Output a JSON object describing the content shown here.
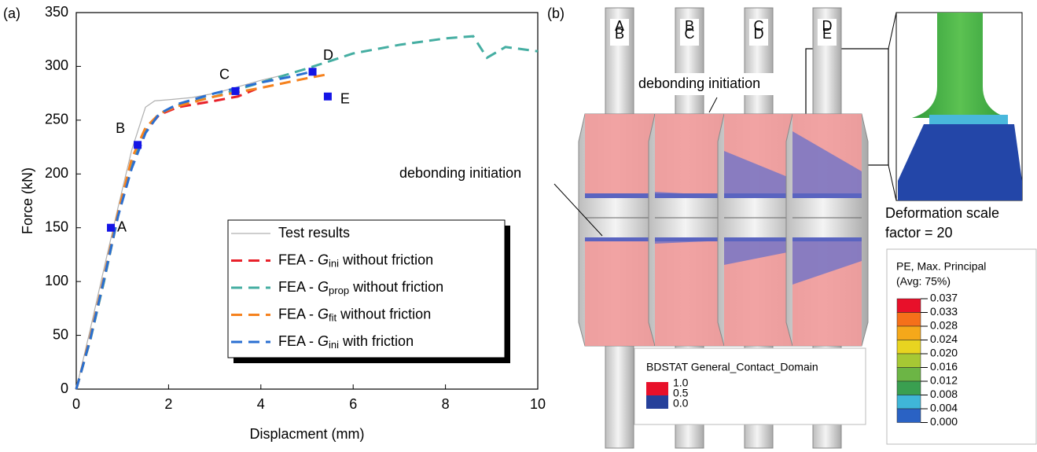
{
  "chart_data": {
    "type": "line",
    "panel_label": "(a)",
    "x_label": "Displacment (mm)",
    "y_label": "Force (kN)",
    "xlim": [
      0,
      10
    ],
    "ylim": [
      0,
      350
    ],
    "xticks": [
      0,
      2,
      4,
      6,
      8,
      10
    ],
    "yticks": [
      0,
      50,
      100,
      150,
      200,
      250,
      300,
      350
    ],
    "series": [
      {
        "name": "Test results",
        "color": "#b0b0b0",
        "dash": false,
        "x": [
          0,
          0.3,
          0.6,
          0.9,
          1.2,
          1.5,
          1.7,
          2.0,
          2.5,
          3.0,
          3.5,
          4.0,
          4.6
        ],
        "values": [
          0,
          55,
          112,
          168,
          222,
          262,
          268,
          269,
          271,
          275,
          281,
          287,
          293
        ]
      },
      {
        "name": "FEA - Gini without friction",
        "color": "#e8212a",
        "dash": true,
        "x": [
          0,
          0.3,
          0.6,
          0.9,
          1.2,
          1.5,
          1.8,
          2.2,
          2.6,
          3.0,
          3.5,
          3.9
        ],
        "values": [
          0,
          45,
          100,
          160,
          210,
          240,
          255,
          262,
          265,
          268,
          272,
          279
        ]
      },
      {
        "name": "FEA - Gprop without friction",
        "color": "#45aea2",
        "dash": true,
        "x": [
          0,
          0.3,
          0.6,
          0.9,
          1.2,
          1.5,
          1.8,
          2.2,
          3.0,
          4.0,
          5.0,
          6.0,
          7.0,
          8.0,
          8.6,
          8.9,
          9.3,
          10.0
        ],
        "values": [
          0,
          45,
          100,
          160,
          212,
          242,
          256,
          264,
          272,
          285,
          298,
          312,
          320,
          326,
          328,
          308,
          318,
          314
        ]
      },
      {
        "name": "FEA - Gfit without friction",
        "color": "#f5821f",
        "dash": true,
        "x": [
          0,
          0.3,
          0.6,
          0.9,
          1.2,
          1.5,
          1.8,
          2.2,
          3.0,
          4.0,
          5.0,
          5.5
        ],
        "values": [
          0,
          48,
          104,
          163,
          214,
          243,
          256,
          263,
          272,
          280,
          289,
          293
        ]
      },
      {
        "name": "FEA - Gini with friction",
        "color": "#2a6fd1",
        "dash": true,
        "x": [
          0,
          0.3,
          0.6,
          0.9,
          1.2,
          1.5,
          1.8,
          2.2,
          3.0,
          4.0,
          4.6,
          5.1
        ],
        "values": [
          0,
          46,
          102,
          160,
          205,
          238,
          256,
          265,
          275,
          285,
          290,
          295
        ]
      }
    ],
    "points": [
      {
        "label": "A",
        "x": 0.75,
        "y": 150
      },
      {
        "label": "B",
        "x": 1.33,
        "y": 227
      },
      {
        "label": "C",
        "x": 3.45,
        "y": 277
      },
      {
        "label": "D",
        "x": 5.12,
        "y": 295
      },
      {
        "label": "E",
        "x": 5.45,
        "y": 272
      }
    ],
    "point_color": "#1414e6"
  },
  "panel_b": {
    "panel_label": "(b)",
    "specimens": [
      [
        "A",
        "B"
      ],
      [
        "B",
        "C"
      ],
      [
        "C",
        "D"
      ],
      [
        "D",
        "E"
      ]
    ],
    "annotations": [
      "debonding initiation",
      "debonding initiation"
    ],
    "scale_note": [
      "Deformation scale",
      "factor = 20"
    ],
    "bdstat": {
      "title": "BDSTAT General_Contact_Domain",
      "labels": [
        "1.0",
        "0.5",
        "0.0"
      ]
    },
    "colorbar": {
      "title": [
        "PE, Max. Principal",
        "(Avg: 75%)"
      ],
      "labels": [
        "0.037",
        "0.033",
        "0.028",
        "0.024",
        "0.020",
        "0.016",
        "0.012",
        "0.008",
        "0.004",
        "0.000"
      ]
    }
  }
}
